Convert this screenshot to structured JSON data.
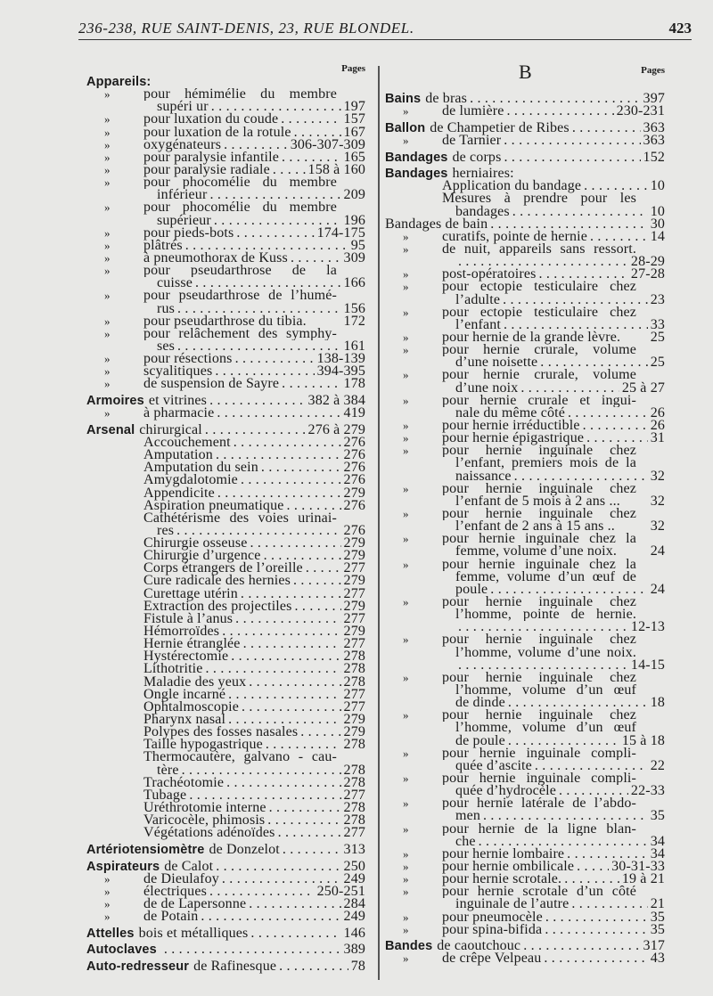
{
  "header": {
    "title": "236-238, RUE SAINT-DENIS, 23, RUE BLONDEL.",
    "page_number": "423"
  },
  "left": {
    "pages_label": "Pages",
    "lines": [
      {
        "h": "Appareils:",
        "i": 0
      },
      {
        "m": 1,
        "t": "pour hémimélie du membre",
        "i": 1
      },
      {
        "t": "supéri ur",
        "p": "197",
        "i": 2
      },
      {
        "m": 1,
        "t": "pour luxation du coude",
        "p": "157",
        "i": 1
      },
      {
        "m": 1,
        "t": "pour luxation de la rotule",
        "p": "167",
        "i": 1
      },
      {
        "m": 1,
        "t": "oxygénateurs",
        "p": "306-307-309",
        "i": 1
      },
      {
        "m": 1,
        "t": "pour paralysie infantile",
        "p": "165",
        "i": 1
      },
      {
        "m": 1,
        "t": "pour paralysie radiale",
        "p": "158 à 160",
        "i": 1
      },
      {
        "m": 1,
        "t": "pour phocomélie du membre",
        "i": 1
      },
      {
        "t": "inférieur",
        "p": "209",
        "i": 2
      },
      {
        "m": 1,
        "t": "pour phocomélie du membre",
        "i": 1
      },
      {
        "t": "supérieur",
        "p": "196",
        "i": 2
      },
      {
        "m": 1,
        "t": "pour pieds-bots",
        "p": "174-175",
        "i": 1
      },
      {
        "m": 1,
        "t": "plâtrés",
        "p": "95",
        "i": 1
      },
      {
        "m": 1,
        "t": "à pneumothorax de Kuss",
        "p": "309",
        "i": 1
      },
      {
        "m": 1,
        "t": "pour pseudarthrose de la",
        "i": 1
      },
      {
        "t": "cuisse",
        "p": "166",
        "i": 2
      },
      {
        "m": 1,
        "t": "pour pseudarthrose de l’humé-",
        "i": 1
      },
      {
        "t": "rus",
        "p": "156",
        "i": 2
      },
      {
        "m": 1,
        "t": "pour pseudarthrose du tibia.",
        "p": "172",
        "i": 1,
        "nl": 1
      },
      {
        "m": 1,
        "t": "pour relâchement des symphy-",
        "i": 1
      },
      {
        "t": "ses",
        "p": "161",
        "i": 2
      },
      {
        "m": 1,
        "t": "pour résections",
        "p": "138-139",
        "i": 1
      },
      {
        "m": 1,
        "t": "scyalitiques",
        "p": "394-395",
        "i": 1
      },
      {
        "m": 1,
        "t": "de suspension de Sayre",
        "p": "178",
        "i": 1
      },
      {
        "h": "Armoires",
        "t": "et vitrines",
        "p": "382 à 384",
        "i": 0,
        "g": 1
      },
      {
        "m": 1,
        "t": "à pharmacie",
        "p": "419",
        "i": 1
      },
      {
        "h": "Arsenal",
        "t": "chirurgical",
        "p": "276 à 279",
        "i": 0,
        "g": 1
      },
      {
        "t": "Accouchement",
        "p": "276",
        "i": 1
      },
      {
        "t": "Amputation",
        "p": "276",
        "i": 1
      },
      {
        "t": "Amputation du sein",
        "p": "276",
        "i": 1
      },
      {
        "t": "Amygdalotomie",
        "p": "276",
        "i": 1
      },
      {
        "t": "Appendicite",
        "p": "279",
        "i": 1
      },
      {
        "t": "Aspiration pneumatique",
        "p": "276",
        "i": 1
      },
      {
        "t": "Cathétérisme des voies urinai-",
        "i": 1
      },
      {
        "t": "res",
        "p": "276",
        "i": 2
      },
      {
        "t": "Chirurgie osseuse",
        "p": "279",
        "i": 1
      },
      {
        "t": "Chirurgie d’urgence",
        "p": "279",
        "i": 1
      },
      {
        "t": "Corps étrangers de l’oreille",
        "p": "277",
        "i": 1
      },
      {
        "t": "Cure radicale des hernies",
        "p": "279",
        "i": 1
      },
      {
        "t": "Curettage utérin",
        "p": "277",
        "i": 1
      },
      {
        "t": "Extraction des projectiles",
        "p": "279",
        "i": 1
      },
      {
        "t": "Fistule à l’anus",
        "p": "277",
        "i": 1
      },
      {
        "t": "Hémorroïdes",
        "p": "279",
        "i": 1
      },
      {
        "t": "Hernie étranglée",
        "p": "277",
        "i": 1
      },
      {
        "t": "Hystérectomie",
        "p": "278",
        "i": 1
      },
      {
        "t": "Lithotritie",
        "p": "278",
        "i": 1
      },
      {
        "t": "Maladie des yeux",
        "p": "278",
        "i": 1
      },
      {
        "t": "Ongle incarné",
        "p": "277",
        "i": 1
      },
      {
        "t": "Ophtalmoscopie",
        "p": "277",
        "i": 1
      },
      {
        "t": "Pharynx nasal",
        "p": "279",
        "i": 1
      },
      {
        "t": "Polypes des fosses nasales",
        "p": "279",
        "i": 1
      },
      {
        "t": "Taille hypogastrique",
        "p": "278",
        "i": 1
      },
      {
        "t": "Thermocautère, galvano - cau-",
        "i": 1
      },
      {
        "t": "tère",
        "p": "278",
        "i": 2
      },
      {
        "t": "Trachéotomie",
        "p": "278",
        "i": 1
      },
      {
        "t": "Tubage",
        "p": "277",
        "i": 1
      },
      {
        "t": "Uréthrotomie interne",
        "p": "278",
        "i": 1
      },
      {
        "t": "Varicocèle, phimosis",
        "p": "278",
        "i": 1
      },
      {
        "t": "Végétations adénoïdes",
        "p": "277",
        "i": 1
      },
      {
        "h": "Artériotensiomètre",
        "t": "de Donzelot",
        "p": "313",
        "i": 0,
        "g": 1
      },
      {
        "h": "Aspirateurs",
        "t": "de Calot",
        "p": "250",
        "i": 0,
        "g": 1
      },
      {
        "m": 1,
        "t": "de Dieulafoy",
        "p": "249",
        "i": 1
      },
      {
        "m": 1,
        "t": "électriques",
        "p": "250-251",
        "i": 1
      },
      {
        "m": 1,
        "t": "de de Lapersonne",
        "p": "284",
        "i": 1
      },
      {
        "m": 1,
        "t": "de Potain",
        "p": "249",
        "i": 1
      },
      {
        "h": "Attelles",
        "t": "bois et métalliques",
        "p": "146",
        "i": 0,
        "g": 1
      },
      {
        "h": "Autoclaves",
        "t": "",
        "p": "389",
        "i": 0,
        "g": 1
      },
      {
        "h": "Auto-redresseur",
        "t": "de Rafinesque",
        "p": "78",
        "i": 0,
        "g": 1
      }
    ]
  },
  "right": {
    "letter": "B",
    "pages_label": "Pages",
    "lines": [
      {
        "h": "Bains",
        "t": "de bras",
        "p": "397",
        "i": 0
      },
      {
        "m": 1,
        "t": "de lumière",
        "p": "230-231",
        "i": 1
      },
      {
        "h": "Ballon",
        "t": "de Champetier de Ribes",
        "p": "363",
        "i": 0,
        "g": 1
      },
      {
        "m": 1,
        "t": "de Tarnier",
        "p": "363",
        "i": 1
      },
      {
        "h": "Bandages",
        "t": "de corps",
        "p": "152",
        "i": 0,
        "g": 1
      },
      {
        "h": "Bandages",
        "t": "herniaires:",
        "i": 0,
        "g": 1
      },
      {
        "t": "Application du bandage",
        "p": "10",
        "i": 1
      },
      {
        "t": "Mesures à prendre pour les",
        "i": 1
      },
      {
        "t": "bandages",
        "p": "10",
        "i": 2
      },
      {
        "t": "Bandages de bain",
        "p": "30",
        "i": 0
      },
      {
        "m": 1,
        "t": "curatifs, pointe de hernie",
        "p": "14",
        "i": 1
      },
      {
        "m": 1,
        "t": "de nuit, appareils sans ressort.",
        "i": 1
      },
      {
        "t": "",
        "p": "28-29",
        "i": 2
      },
      {
        "m": 1,
        "t": "post-opératoires",
        "p": "27-28",
        "i": 1
      },
      {
        "m": 1,
        "t": "pour ectopie testiculaire chez",
        "i": 1
      },
      {
        "t": "l’adulte",
        "p": "23",
        "i": 2
      },
      {
        "m": 1,
        "t": "pour ectopie testiculaire chez",
        "i": 1
      },
      {
        "t": "l’enfant",
        "p": "33",
        "i": 2
      },
      {
        "m": 1,
        "t": "pour hernie de la grande lèvre.",
        "p": "25",
        "i": 1,
        "nl": 1
      },
      {
        "m": 1,
        "t": "pour hernie crurale, volume",
        "i": 1
      },
      {
        "t": "d’une noisette",
        "p": "25",
        "i": 2
      },
      {
        "m": 1,
        "t": "pour hernie crurale, volume",
        "i": 1
      },
      {
        "t": "d’une noix",
        "p": "25 à 27",
        "i": 2
      },
      {
        "m": 1,
        "t": "pour hernie crurale et ingui-",
        "i": 1
      },
      {
        "t": "nale du même côté",
        "p": "26",
        "i": 2
      },
      {
        "m": 1,
        "t": "pour hernie irréductible",
        "p": "26",
        "i": 1
      },
      {
        "m": 1,
        "t": "pour hernie épigastrique",
        "p": "31",
        "i": 1
      },
      {
        "m": 1,
        "t": "pour hernie inguinale chez",
        "i": 1
      },
      {
        "t": "l’enfant, premiers mois de la",
        "i": 2
      },
      {
        "t": "naissance",
        "p": "32",
        "i": 2
      },
      {
        "m": 1,
        "t": "pour hernie inguinale chez",
        "i": 1
      },
      {
        "t": "l’enfant de 5 mois à 2 ans ...",
        "p": "32",
        "i": 2,
        "nl": 1
      },
      {
        "m": 1,
        "t": "pour hernie inguinale chez",
        "i": 1
      },
      {
        "t": "l’enfant de 2 ans à 15 ans ..",
        "p": "32",
        "i": 2,
        "nl": 1
      },
      {
        "m": 1,
        "t": "pour hernie inguinale chez la",
        "i": 1
      },
      {
        "t": "femme, volume d’une noix.",
        "p": "24",
        "i": 2,
        "nl": 1
      },
      {
        "m": 1,
        "t": "pour hernie inguinale chez la",
        "i": 1
      },
      {
        "t": "femme, volume d’un œuf de",
        "i": 2
      },
      {
        "t": "poule",
        "p": "24",
        "i": 2
      },
      {
        "m": 1,
        "t": "pour hernie inguinale chez",
        "i": 1
      },
      {
        "t": "l’homme, pointe de hernie.",
        "i": 2
      },
      {
        "t": "",
        "p": "12-13",
        "i": 2
      },
      {
        "m": 1,
        "t": "pour hernie inguinale chez",
        "i": 1
      },
      {
        "t": "l’homme, volume d’une noix.",
        "i": 2
      },
      {
        "t": "",
        "p": "14-15",
        "i": 2
      },
      {
        "m": 1,
        "t": "pour hernie inguinale chez",
        "i": 1
      },
      {
        "t": "l’homme, volume d’un œuf",
        "i": 2
      },
      {
        "t": "de dinde",
        "p": "18",
        "i": 2
      },
      {
        "m": 1,
        "t": "pour hernie inguinale chez",
        "i": 1
      },
      {
        "t": "l’homme, volume d’un œuf",
        "i": 2
      },
      {
        "t": "de poule",
        "p": "15 à 18",
        "i": 2
      },
      {
        "m": 1,
        "t": "pour hernie inguinale compli-",
        "i": 1
      },
      {
        "t": "quée d’ascite",
        "p": "22",
        "i": 2
      },
      {
        "m": 1,
        "t": "pour hernie inguinale compli-",
        "i": 1
      },
      {
        "t": "quée d’hydrocèle",
        "p": "22-33",
        "i": 2
      },
      {
        "m": 1,
        "t": "pour hernie latérale de l’abdo-",
        "i": 1
      },
      {
        "t": "men",
        "p": "35",
        "i": 2
      },
      {
        "m": 1,
        "t": "pour hernie de la ligne blan-",
        "i": 1
      },
      {
        "t": "che",
        "p": "34",
        "i": 2
      },
      {
        "m": 1,
        "t": "pour hernie lombaire",
        "p": "34",
        "i": 1
      },
      {
        "m": 1,
        "t": "pour hernie ombilicale",
        "p": "30-31-33",
        "i": 1
      },
      {
        "m": 1,
        "t": "pour hernie scrotale.",
        "p": "19 à 21",
        "i": 1
      },
      {
        "m": 1,
        "t": "pour hernie scrotale d’un côté",
        "i": 1
      },
      {
        "t": "inguinale de l’autre",
        "p": "21",
        "i": 2
      },
      {
        "m": 1,
        "t": "pour pneumocèle",
        "p": "35",
        "i": 1
      },
      {
        "m": 1,
        "t": "pour spina-bifida",
        "p": "35",
        "i": 1
      },
      {
        "h": "Bandes",
        "t": "de caoutchouc",
        "p": "317",
        "i": 0,
        "g": 1
      },
      {
        "m": 1,
        "t": "de crêpe Velpeau",
        "p": "43",
        "i": 1
      }
    ]
  },
  "marker": "»"
}
